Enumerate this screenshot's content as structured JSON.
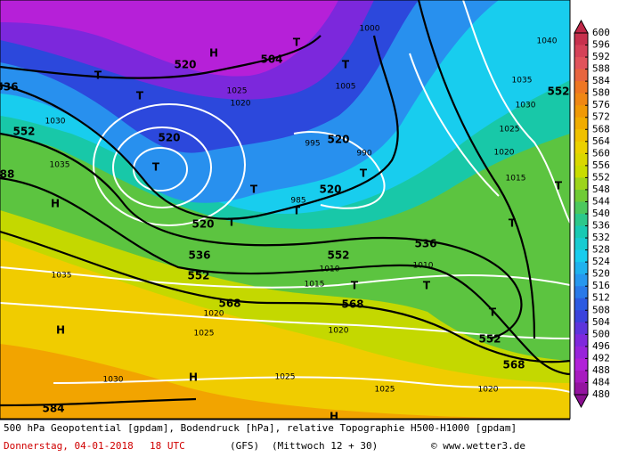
{
  "map_labels": [
    "520",
    "504",
    "T",
    "T",
    "H",
    "T",
    "T",
    "520",
    "T",
    "520",
    "520",
    "T",
    "T",
    "T",
    "520",
    "T",
    "536",
    "552",
    "552",
    "536",
    "568",
    "568",
    "T",
    "T",
    "552",
    "568",
    "552",
    "T",
    "T",
    "T",
    "H",
    "H",
    "H",
    "H",
    "584",
    "536",
    "552",
    "88",
    "1000",
    "1040",
    "1035",
    "1030",
    "1025",
    "1020",
    "1015",
    "1005",
    "995",
    "990",
    "985",
    "1010",
    "1015",
    "1020",
    "1025",
    "1030",
    "1025",
    "1025",
    "1020",
    "1035",
    "1030",
    "1035",
    "1020",
    "1010",
    "1020",
    "1025"
  ],
  "colorbar": {
    "levels": [
      600,
      596,
      592,
      588,
      584,
      580,
      576,
      572,
      568,
      564,
      560,
      556,
      552,
      548,
      544,
      540,
      536,
      532,
      528,
      524,
      520,
      516,
      512,
      508,
      504,
      500,
      496,
      492,
      488,
      484,
      480
    ]
  },
  "footer": {
    "line1": "500 hPa Geopotential [gpdam], Bodendruck [hPa], relative Topographie H500-H1000 [gpdam]",
    "date": "Donnerstag, 04-01-2018",
    "time": "18 UTC",
    "model": "(GFS)",
    "run": "(Mittwoch 12 + 30)",
    "copyright": "© www.wetter3.de"
  }
}
